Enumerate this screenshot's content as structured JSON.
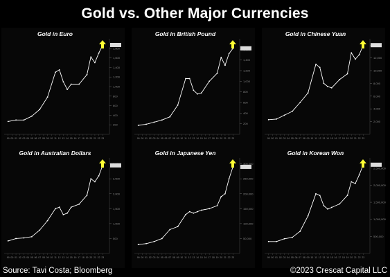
{
  "title": "Gold vs. Other Major Currencies",
  "footer": {
    "source": "Source: Tavi Costa; Bloomberg",
    "credit": "©2023 Crescat Capital LLC"
  },
  "colors": {
    "background": "#000000",
    "line": "#ffffff",
    "arrow": "#ffff33",
    "axis_text": "#8a8a8a"
  },
  "arrow_icon": "up-arrow-icon",
  "chart_data": [
    {
      "type": "line",
      "title": "Gold in Euro",
      "ylim": [
        0,
        2000
      ],
      "yticks": [
        200,
        400,
        600,
        800,
        1000,
        1200,
        1400,
        1600,
        1800
      ],
      "x": [
        1999,
        2001,
        2003,
        2005,
        2007,
        2009,
        2011,
        2012,
        2013,
        2014,
        2015,
        2017,
        2019,
        2020,
        2021,
        2022,
        2023
      ],
      "values": [
        270,
        300,
        300,
        380,
        520,
        780,
        1300,
        1350,
        1100,
        940,
        1050,
        1050,
        1250,
        1620,
        1500,
        1700,
        1870
      ]
    },
    {
      "type": "line",
      "title": "Gold in British Pound",
      "ylim": [
        0,
        1800
      ],
      "yticks": [
        200,
        400,
        600,
        800,
        1000,
        1200,
        1400,
        1600
      ],
      "x": [
        1999,
        2001,
        2003,
        2005,
        2007,
        2009,
        2011,
        2012,
        2013,
        2014,
        2015,
        2017,
        2019,
        2020,
        2021,
        2022,
        2023
      ],
      "values": [
        170,
        190,
        230,
        270,
        330,
        550,
        1050,
        1050,
        830,
        760,
        780,
        1000,
        1150,
        1450,
        1300,
        1520,
        1620
      ]
    },
    {
      "type": "line",
      "title": "Gold in Chinese Yuan",
      "ylim": [
        0,
        15000
      ],
      "yticks": [
        2000,
        4000,
        6000,
        8000,
        10000,
        12000,
        14000
      ],
      "x": [
        1999,
        2001,
        2003,
        2005,
        2007,
        2009,
        2011,
        2012,
        2013,
        2014,
        2015,
        2017,
        2019,
        2020,
        2021,
        2022,
        2023
      ],
      "values": [
        2300,
        2400,
        3000,
        3600,
        5000,
        6500,
        11000,
        10500,
        8000,
        7500,
        7300,
        8600,
        9500,
        12800,
        11800,
        12500,
        14000
      ]
    },
    {
      "type": "line",
      "title": "Gold in Australian Dollars",
      "ylim": [
        0,
        3200
      ],
      "yticks": [
        500,
        1000,
        1500,
        2000,
        2500,
        3000
      ],
      "x": [
        1999,
        2001,
        2003,
        2005,
        2007,
        2009,
        2011,
        2012,
        2013,
        2014,
        2015,
        2017,
        2019,
        2020,
        2021,
        2022,
        2023
      ],
      "values": [
        420,
        500,
        520,
        560,
        780,
        1100,
        1500,
        1550,
        1300,
        1350,
        1550,
        1650,
        1950,
        2500,
        2400,
        2600,
        2950
      ]
    },
    {
      "type": "line",
      "title": "Gold in Japanese Yen",
      "ylim": [
        0,
        320000
      ],
      "yticks": [
        50000,
        100000,
        150000,
        200000,
        250000,
        300000
      ],
      "x": [
        1999,
        2001,
        2003,
        2005,
        2007,
        2009,
        2011,
        2012,
        2013,
        2014,
        2015,
        2017,
        2019,
        2020,
        2021,
        2022,
        2023
      ],
      "values": [
        30000,
        33000,
        40000,
        50000,
        80000,
        90000,
        130000,
        140000,
        135000,
        140000,
        145000,
        150000,
        160000,
        190000,
        200000,
        250000,
        290000
      ]
    },
    {
      "type": "line",
      "title": "Gold in Korean Won",
      "ylim": [
        0,
        2800000
      ],
      "yticks": [
        500000,
        1000000,
        1500000,
        2000000,
        2500000
      ],
      "x": [
        1999,
        2001,
        2003,
        2005,
        2007,
        2009,
        2011,
        2012,
        2013,
        2014,
        2015,
        2017,
        2019,
        2020,
        2021,
        2022,
        2023
      ],
      "values": [
        350000,
        350000,
        430000,
        470000,
        650000,
        1100000,
        1750000,
        1700000,
        1400000,
        1300000,
        1350000,
        1450000,
        1700000,
        2100000,
        2050000,
        2300000,
        2600000
      ]
    }
  ]
}
